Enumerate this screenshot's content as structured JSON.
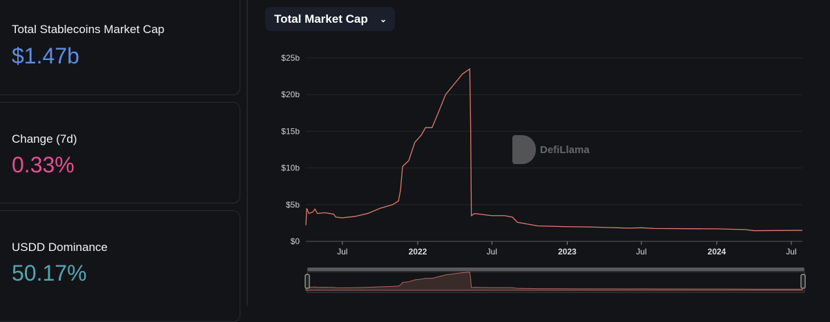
{
  "stats": [
    {
      "label": "Total Stablecoins Market Cap",
      "value": "$1.47b",
      "color": "#5c8fe6"
    },
    {
      "label": "Change (7d)",
      "value": "0.33%",
      "color": "#e64e93"
    },
    {
      "label": "USDD Dominance",
      "value": "50.17%",
      "color": "#4fa8b2"
    }
  ],
  "chart_selector": {
    "label": "Total Market Cap",
    "icon": "chevron-down-icon"
  },
  "watermark": "DefiLlama",
  "chart_data": {
    "type": "line",
    "title": "",
    "xlabel": "",
    "ylabel": "",
    "grid": true,
    "line_color": "#e07a6f",
    "ylim": [
      0,
      25
    ],
    "y_ticks": [
      {
        "v": 0,
        "label": "$0"
      },
      {
        "v": 5,
        "label": "$5b"
      },
      {
        "v": 10,
        "label": "$10b"
      },
      {
        "v": 15,
        "label": "$15b"
      },
      {
        "v": 20,
        "label": "$20b"
      },
      {
        "v": 25,
        "label": "$25b"
      }
    ],
    "x_range": [
      "2021-04-03",
      "2024-07-28"
    ],
    "x_ticks": [
      {
        "d": "2021-07-01",
        "label": "Jul"
      },
      {
        "d": "2022-01-01",
        "label": "2022"
      },
      {
        "d": "2022-07-01",
        "label": "Jul"
      },
      {
        "d": "2023-01-01",
        "label": "2023"
      },
      {
        "d": "2023-07-01",
        "label": "Jul"
      },
      {
        "d": "2024-01-01",
        "label": "2024"
      },
      {
        "d": "2024-07-01",
        "label": "Jul"
      }
    ],
    "series": [
      {
        "points": [
          [
            "2021-04-03",
            2.2
          ],
          [
            "2021-04-05",
            4.5
          ],
          [
            "2021-04-10",
            3.8
          ],
          [
            "2021-04-20",
            4.0
          ],
          [
            "2021-04-25",
            4.4
          ],
          [
            "2021-05-01",
            3.8
          ],
          [
            "2021-05-20",
            3.9
          ],
          [
            "2021-06-10",
            3.7
          ],
          [
            "2021-06-15",
            3.3
          ],
          [
            "2021-07-01",
            3.2
          ],
          [
            "2021-08-01",
            3.4
          ],
          [
            "2021-09-01",
            3.8
          ],
          [
            "2021-10-01",
            4.5
          ],
          [
            "2021-11-01",
            5.0
          ],
          [
            "2021-11-15",
            5.5
          ],
          [
            "2021-11-20",
            7.0
          ],
          [
            "2021-11-25",
            10.2
          ],
          [
            "2021-12-10",
            11.0
          ],
          [
            "2021-12-25",
            13.5
          ],
          [
            "2022-01-10",
            14.5
          ],
          [
            "2022-01-20",
            15.5
          ],
          [
            "2022-02-05",
            15.5
          ],
          [
            "2022-02-20",
            17.5
          ],
          [
            "2022-03-10",
            20.0
          ],
          [
            "2022-04-01",
            21.5
          ],
          [
            "2022-04-20",
            22.8
          ],
          [
            "2022-05-08",
            23.5
          ],
          [
            "2022-05-10",
            16.5
          ],
          [
            "2022-05-12",
            3.5
          ],
          [
            "2022-05-20",
            3.8
          ],
          [
            "2022-06-01",
            3.7
          ],
          [
            "2022-07-01",
            3.5
          ],
          [
            "2022-08-01",
            3.5
          ],
          [
            "2022-08-20",
            3.3
          ],
          [
            "2022-09-01",
            2.6
          ],
          [
            "2022-10-01",
            2.3
          ],
          [
            "2022-10-20",
            2.1
          ],
          [
            "2023-01-01",
            2.0
          ],
          [
            "2023-03-01",
            1.95
          ],
          [
            "2023-06-01",
            1.8
          ],
          [
            "2023-07-01",
            1.85
          ],
          [
            "2023-08-01",
            1.75
          ],
          [
            "2024-01-01",
            1.7
          ],
          [
            "2024-03-10",
            1.6
          ],
          [
            "2024-04-01",
            1.45
          ],
          [
            "2024-07-28",
            1.5
          ]
        ]
      }
    ]
  }
}
